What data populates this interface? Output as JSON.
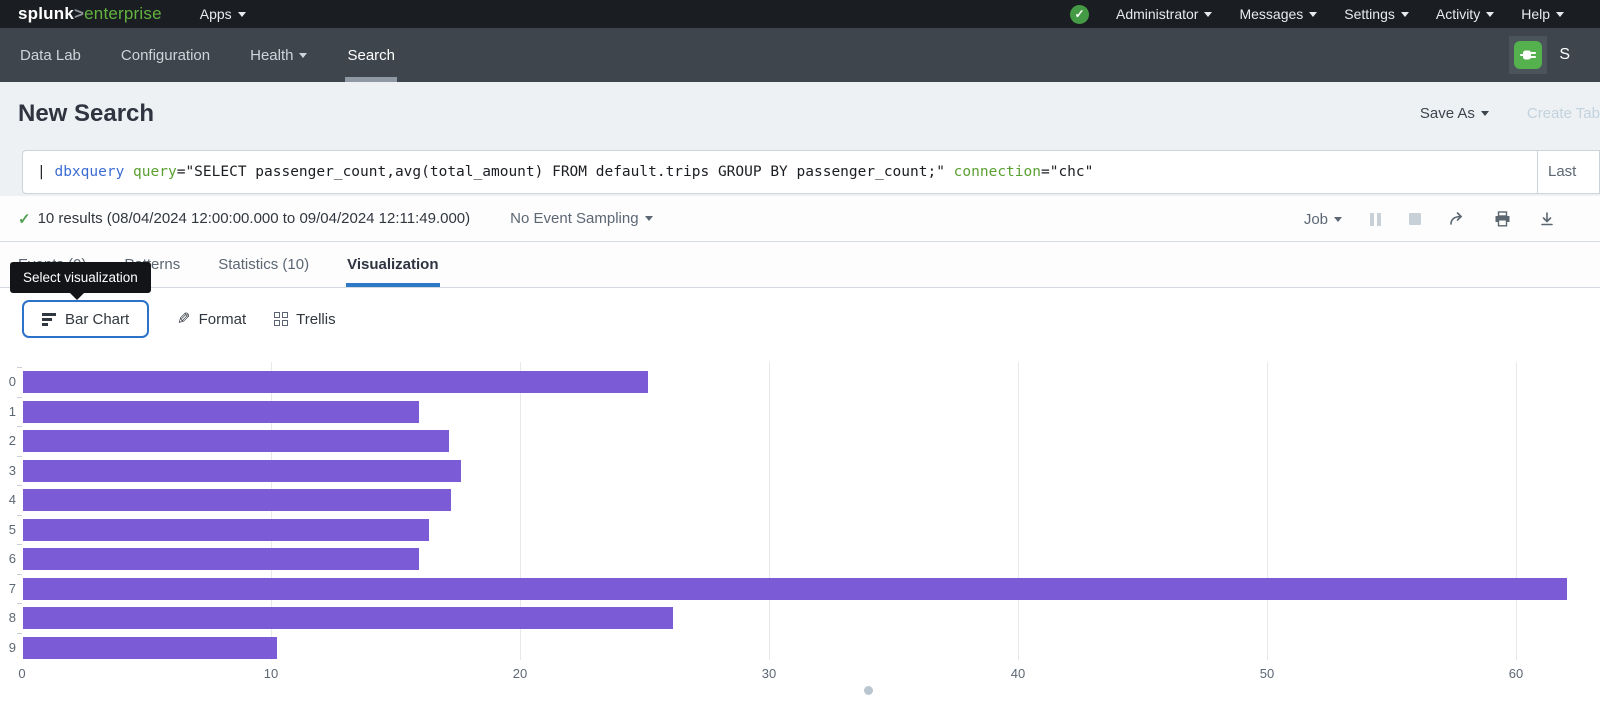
{
  "topbar": {
    "logo": {
      "splunk": "splunk",
      "gt": ">",
      "product": "enterprise"
    },
    "apps_label": "Apps",
    "menu": [
      "Administrator",
      "Messages",
      "Settings",
      "Activity",
      "Help"
    ]
  },
  "appbar": {
    "items": [
      {
        "label": "Data Lab"
      },
      {
        "label": "Configuration"
      },
      {
        "label": "Health"
      },
      {
        "label": "Search"
      }
    ],
    "app_title_partial": "S"
  },
  "header": {
    "title": "New Search",
    "save_as_label": "Save As",
    "create_table_label": "Create Tab"
  },
  "search_bar": {
    "query_full": "| dbxquery query=\"SELECT passenger_count,avg(total_amount) FROM default.trips GROUP BY passenger_count;\" connection=\"chc\"",
    "query_tokens": [
      {
        "text": "| ",
        "type": "pipe"
      },
      {
        "text": "dbxquery",
        "type": "command"
      },
      {
        "text": " ",
        "type": "plain"
      },
      {
        "text": "query",
        "type": "attr"
      },
      {
        "text": "=",
        "type": "plain"
      },
      {
        "text": "\"SELECT passenger_count,avg(total_amount) FROM default.trips GROUP BY passenger_count;\"",
        "type": "string"
      },
      {
        "text": " ",
        "type": "plain"
      },
      {
        "text": "connection",
        "type": "attr"
      },
      {
        "text": "=",
        "type": "plain"
      },
      {
        "text": "\"chc\"",
        "type": "string"
      }
    ],
    "time_range_partial": "Last"
  },
  "results_bar": {
    "summary": "10 results (08/04/2024 12:00:00.000 to 09/04/2024 12:11:49.000)",
    "sampling_label": "No Event Sampling",
    "job_label": "Job"
  },
  "tabs": [
    {
      "label": "Events (0)",
      "active": false
    },
    {
      "label": "Patterns",
      "active": false
    },
    {
      "label": "Statistics (10)",
      "active": false
    },
    {
      "label": "Visualization",
      "active": true
    }
  ],
  "tooltip": {
    "text": "Select visualization"
  },
  "viz_controls": {
    "chart_type_label": "Bar Chart",
    "format_label": "Format",
    "trellis_label": "Trellis"
  },
  "chart_data": {
    "type": "bar",
    "orientation": "horizontal",
    "title": "",
    "xlabel": "",
    "ylabel": "",
    "categories": [
      "0",
      "1",
      "2",
      "3",
      "4",
      "5",
      "6",
      "7",
      "8",
      "9"
    ],
    "series": [
      {
        "name": "avg(total_amount)",
        "values": [
          25.1,
          15.9,
          17.1,
          17.6,
          17.2,
          16.3,
          15.9,
          62.0,
          26.1,
          10.2
        ]
      }
    ],
    "x_ticks": [
      0,
      10,
      20,
      30,
      40,
      50,
      60
    ],
    "xlim": [
      0,
      63.4
    ],
    "grid": true,
    "legend": "none",
    "bar_color": "#7b5cd6"
  },
  "icons": {
    "check": "✓",
    "pencil": "✎"
  },
  "colors": {
    "splunk_green": "#62b33f",
    "topbar_bg": "#1a1d21",
    "appbar_bg": "#3e454d",
    "bar_purple": "#7b5cd6",
    "tab_underline_blue": "#2d78c7",
    "focus_ring_blue": "#2b72c8",
    "command_blue": "#3c6dd4",
    "attr_green": "#5ba032",
    "success_green": "#53a051"
  }
}
